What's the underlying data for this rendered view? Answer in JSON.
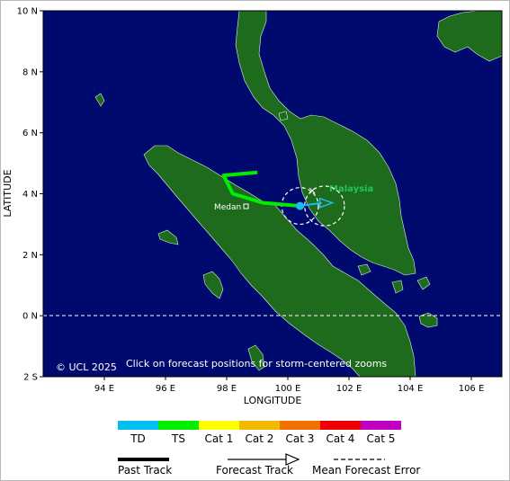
{
  "map": {
    "y_axis_title": "LATITUDE",
    "x_axis_title": "LONGITUDE",
    "lat_ticks": [
      {
        "label": "10 N",
        "value": 10
      },
      {
        "label": "8 N",
        "value": 8
      },
      {
        "label": "6 N",
        "value": 6
      },
      {
        "label": "4 N",
        "value": 4
      },
      {
        "label": "2 N",
        "value": 2
      },
      {
        "label": "0 N",
        "value": 0
      },
      {
        "label": "2 S",
        "value": -2
      }
    ],
    "lon_ticks": [
      {
        "label": "94 E",
        "value": 94
      },
      {
        "label": "96 E",
        "value": 96
      },
      {
        "label": "98 E",
        "value": 98
      },
      {
        "label": "100 E",
        "value": 100
      },
      {
        "label": "102 E",
        "value": 102
      },
      {
        "label": "104 E",
        "value": 104
      },
      {
        "label": "106 E",
        "value": 106
      }
    ],
    "lon_range": [
      92,
      107
    ],
    "lat_range": [
      -2,
      10
    ],
    "equator_dashed": true,
    "ocean_color": "#000a6e",
    "land_color": "#1e6b1e",
    "city_label": "Medan",
    "country_label": "Malaysia",
    "country_label_color": "#22c55e",
    "copyright": "© UCL 2025",
    "hint": "Click on forecast positions for storm-centered zooms"
  },
  "track": {
    "past_color": "#00ee00",
    "forecast_color": "#22bbee",
    "past_points": [
      [
        99.0,
        4.7
      ],
      [
        97.9,
        4.6
      ],
      [
        98.2,
        4.0
      ],
      [
        99.2,
        3.7
      ],
      [
        100.4,
        3.6
      ]
    ],
    "forecast_points": [
      [
        100.4,
        3.6
      ],
      [
        101.4,
        3.7
      ]
    ],
    "current_position": [
      100.4,
      3.6
    ],
    "error_circles": [
      {
        "center": [
          100.4,
          3.6
        ],
        "radius_deg": 0.6
      },
      {
        "center": [
          101.2,
          3.6
        ],
        "radius_deg": 0.65
      }
    ]
  },
  "legend": {
    "scale": [
      {
        "label": "TD",
        "color": "#00c0f0"
      },
      {
        "label": "TS",
        "color": "#00ee00"
      },
      {
        "label": "Cat 1",
        "color": "#ffff00"
      },
      {
        "label": "Cat 2",
        "color": "#f5b800"
      },
      {
        "label": "Cat 3",
        "color": "#f07000"
      },
      {
        "label": "Cat 4",
        "color": "#ee0000"
      },
      {
        "label": "Cat 5",
        "color": "#c000c0"
      }
    ],
    "past_track_label": "Past Track",
    "forecast_track_label": "Forecast Track",
    "mean_error_label": "Mean Forecast Error"
  }
}
